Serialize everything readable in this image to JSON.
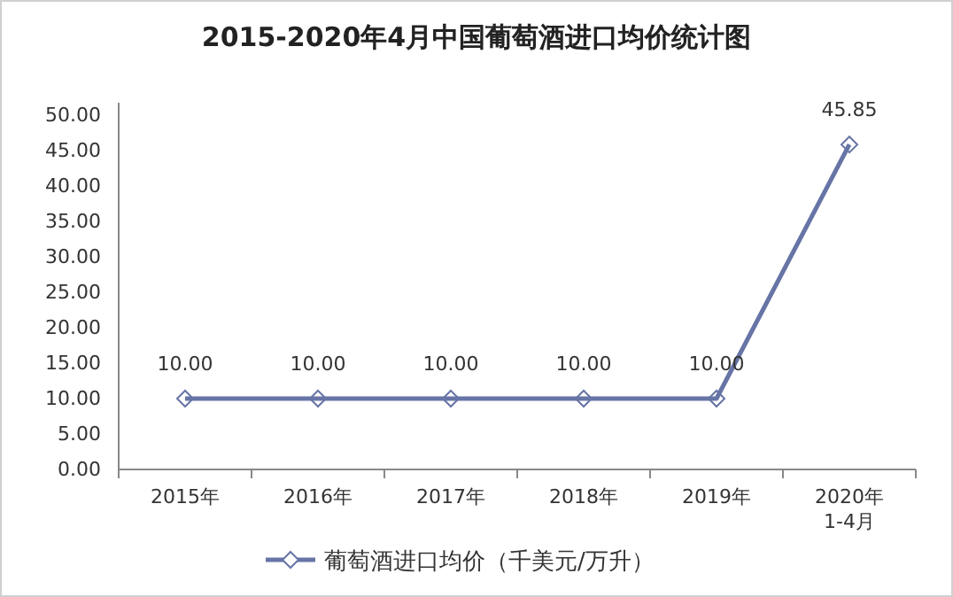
{
  "chart_data": {
    "type": "line",
    "title": "2015-2020年4月中国葡萄酒进口均价统计图",
    "categories": [
      "2015年",
      "2016年",
      "2017年",
      "2018年",
      "2019年",
      "2020年\n1-4月"
    ],
    "series": [
      {
        "name": "葡萄酒进口均价（千美元/万升）",
        "color": "#6674a6",
        "values": [
          10,
          10,
          10,
          10,
          10,
          45.85
        ],
        "value_labels": [
          "10.00",
          "10.00",
          "10.00",
          "10.00",
          "10.00",
          "45.85"
        ]
      }
    ],
    "ylim": [
      0,
      51.75
    ],
    "yticks": [
      {
        "value": 0,
        "label": "0.00"
      },
      {
        "value": 5,
        "label": "5.00"
      },
      {
        "value": 10,
        "label": "10.00"
      },
      {
        "value": 15,
        "label": "15.00"
      },
      {
        "value": 20,
        "label": "20.00"
      },
      {
        "value": 25,
        "label": "25.00"
      },
      {
        "value": 30,
        "label": "30.00"
      },
      {
        "value": 35,
        "label": "35.00"
      },
      {
        "value": 40,
        "label": "40.00"
      },
      {
        "value": 45,
        "label": "45.00"
      },
      {
        "value": 50,
        "label": "50.00"
      }
    ],
    "marker": "diamond",
    "line_style": "solid",
    "legend": "bottom",
    "grid": false
  }
}
